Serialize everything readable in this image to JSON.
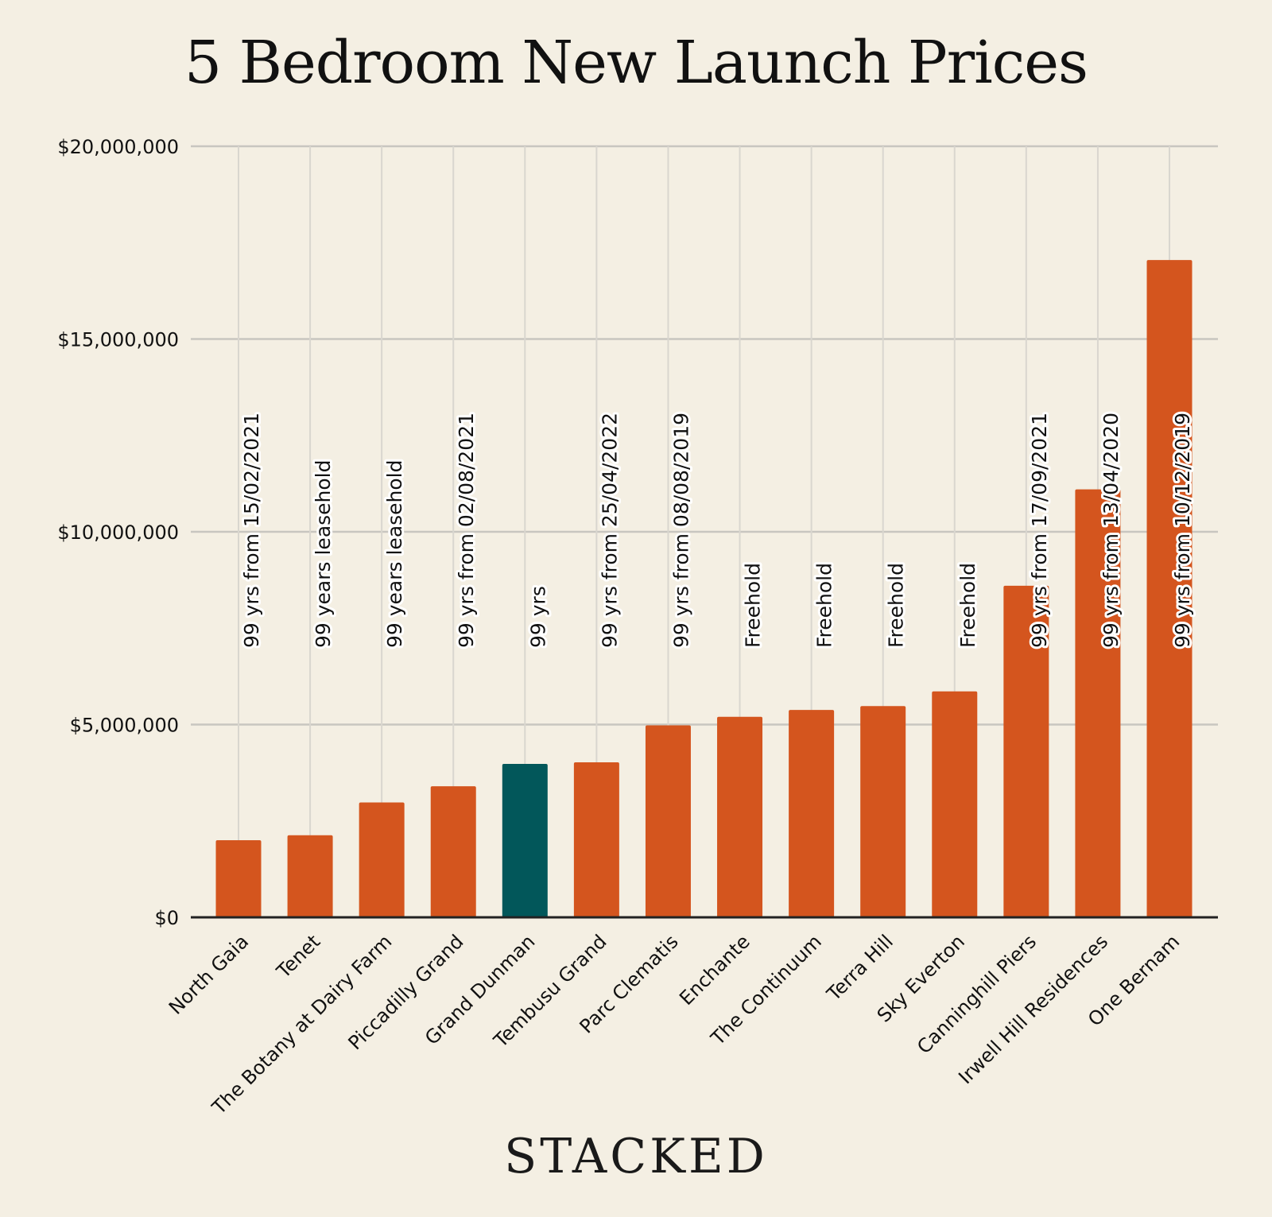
{
  "chart_data": {
    "type": "bar",
    "title": "5 Bedroom New Launch Prices",
    "xlabel": "",
    "ylabel": "",
    "ylim": [
      0,
      20000000
    ],
    "yticks": [
      0,
      5000000,
      10000000,
      15000000,
      20000000
    ],
    "ytick_labels": [
      "$0",
      "$5,000,000",
      "$10,000,000",
      "$15,000,000",
      "$20,000,000"
    ],
    "grid": true,
    "categories": [
      "North Gaia",
      "Tenet",
      "The Botany at Dairy Farm",
      "Piccadilly Grand",
      "Grand Dunman",
      "Tembusu Grand",
      "Parc Clematis",
      "Enchante",
      "The Continuum",
      "Terra Hill",
      "Sky Everton",
      "Canninghill Piers",
      "Irwell Hill Residences",
      "One Bernam"
    ],
    "values": [
      2000000,
      2130000,
      2980000,
      3400000,
      3980000,
      4020000,
      4980000,
      5200000,
      5380000,
      5480000,
      5860000,
      8600000,
      11100000,
      17050000
    ],
    "annotations": [
      "99 yrs from 15/02/2021",
      "99 years leasehold",
      "99 years leasehold",
      "99 yrs from 02/08/2021",
      "99 yrs",
      "99 yrs from 25/04/2022",
      "99 yrs from 08/08/2019",
      "Freehold",
      "Freehold",
      "Freehold",
      "Freehold",
      "99 yrs from 17/09/2021",
      "99 yrs from 13/04/2020",
      "99 yrs from 10/12/2019"
    ],
    "highlight_category": "Grand Dunman",
    "colors": {
      "bar": "#d4551e",
      "highlight": "#02575a",
      "grid": "#c8c6c0",
      "axis": "#222222"
    }
  },
  "brand": "STACKED"
}
